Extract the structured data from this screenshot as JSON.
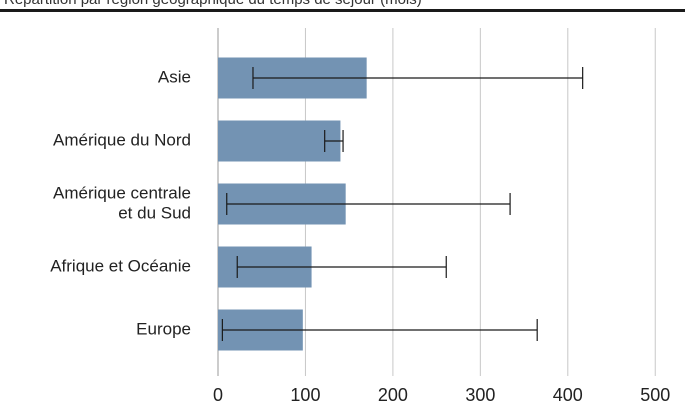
{
  "header": {
    "title": "Répartition par région géographique du temps de séjour (mois)"
  },
  "colors": {
    "bar": "#7393b3",
    "grid": "#c8c8c8",
    "error_bar": "#1a1a1a",
    "rule": "#1a1a1a"
  },
  "chart_data": {
    "type": "bar",
    "orientation": "horizontal",
    "categories": [
      [
        "Asie"
      ],
      [
        "Amérique du Nord"
      ],
      [
        "Amérique centrale",
        "et du Sud"
      ],
      [
        "Afrique et Océanie"
      ],
      [
        "Europe"
      ]
    ],
    "values": [
      170,
      140,
      146,
      107,
      97
    ],
    "error_low": [
      40,
      122,
      10,
      22,
      5
    ],
    "error_high": [
      417,
      143,
      334,
      261,
      365
    ],
    "xlim": [
      0,
      500
    ],
    "xticks": [
      0,
      100,
      200,
      300,
      400,
      500
    ],
    "grid": true,
    "legend": "none"
  }
}
